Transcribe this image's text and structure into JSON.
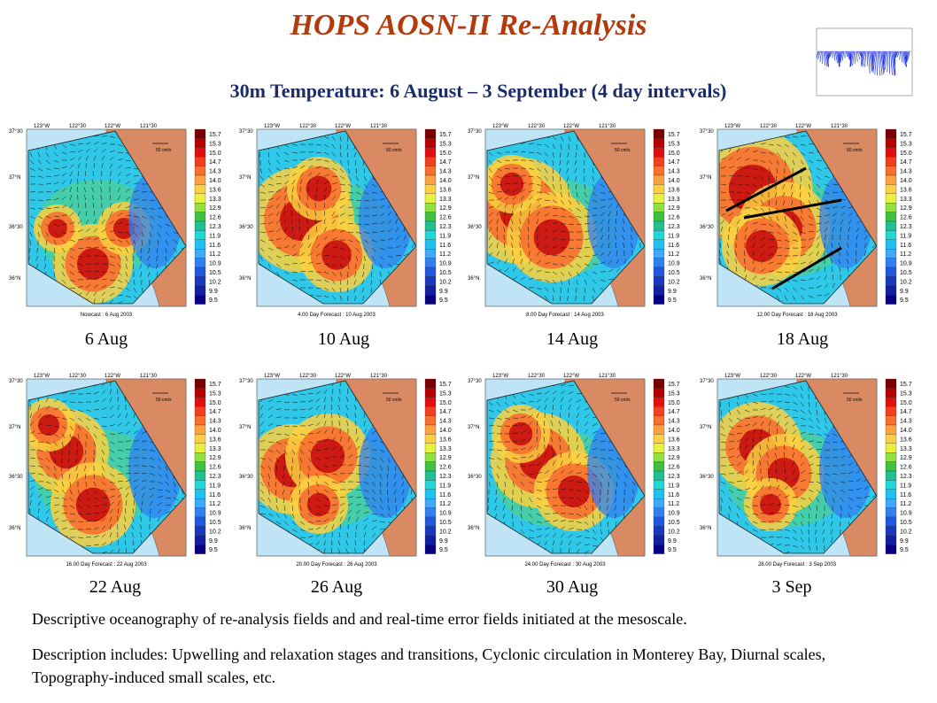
{
  "title": "HOPS AOSN-II Re-Analysis",
  "subtitle": "30m Temperature: 6 August – 3 September (4 day intervals)",
  "panels": [
    {
      "label": "6 Aug",
      "caption": "Nowcast : 6 Aug 2003"
    },
    {
      "label": "10 Aug",
      "caption": "4.00 Day Forecast : 10 Aug 2003"
    },
    {
      "label": "14 Aug",
      "caption": "8.00 Day Forecast : 14 Aug 2003"
    },
    {
      "label": "18 Aug",
      "caption": "12.00 Day Forecast : 18 Aug 2003"
    },
    {
      "label": "22 Aug",
      "caption": "16.00 Day Forecast : 22 Aug 2003"
    },
    {
      "label": "26 Aug",
      "caption": "20.00 Day Forecast : 26 Aug 2003"
    },
    {
      "label": "30 Aug",
      "caption": "24.00 Day Forecast : 30 Aug 2003"
    },
    {
      "label": "3 Sep",
      "caption": "28.00 Day Forecast : 3 Sep 2003"
    }
  ],
  "axis": {
    "lon": [
      "123°W",
      "122°30",
      "122°W",
      "121°30"
    ],
    "lat": [
      "37°30",
      "37°N",
      "36°30",
      "36°N"
    ],
    "scale_vector": "50 cm/s"
  },
  "colorbar": {
    "values": [
      "15.7",
      "15.3",
      "15.0",
      "14.7",
      "14.3",
      "14.0",
      "13.6",
      "13.3",
      "12.9",
      "12.6",
      "12.3",
      "11.9",
      "11.6",
      "11.2",
      "10.9",
      "10.5",
      "10.2",
      "9.9",
      "9.5"
    ],
    "colors": [
      "#7a0000",
      "#b80000",
      "#e01010",
      "#f04020",
      "#f87030",
      "#fca040",
      "#fcd040",
      "#e8f040",
      "#90e040",
      "#40c040",
      "#20c090",
      "#20d8d8",
      "#20c0f0",
      "#40a8f8",
      "#3080f0",
      "#2058e0",
      "#1838c0",
      "#1020a0",
      "#080080"
    ]
  },
  "descriptions": [
    "Descriptive oceanography of re-analysis fields and and real-time error fields initiated at the mesoscale.",
    "Description includes: Upwelling and relaxation stages and transitions, Cyclonic circulation in Monterey Bay, Diurnal scales, Topography-induced small scales, etc."
  ]
}
